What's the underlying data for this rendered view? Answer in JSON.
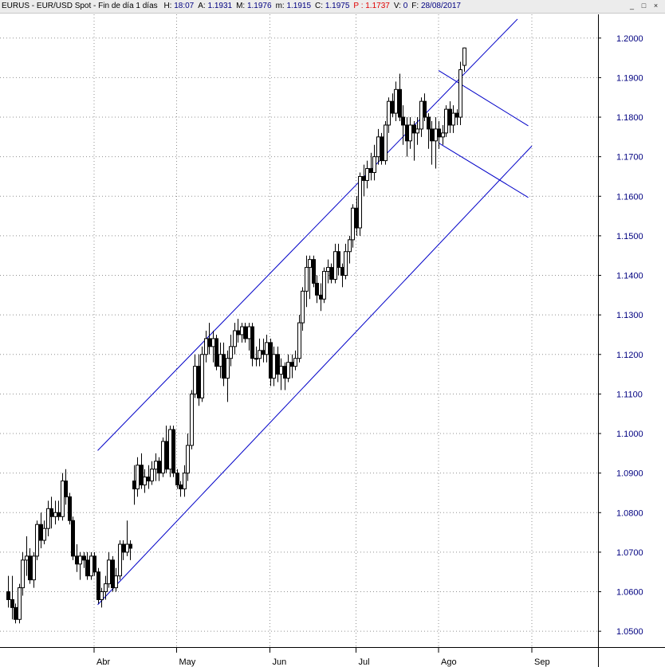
{
  "header": {
    "symbol": "EURUS",
    "description": "EUR/USD Spot",
    "period": "Fin de día 1 días",
    "fields": [
      {
        "label": "H:",
        "value": "18:07",
        "red": false
      },
      {
        "label": "A:",
        "value": "1.1931",
        "red": false
      },
      {
        "label": "M:",
        "value": "1.1976",
        "red": false
      },
      {
        "label": "m:",
        "value": "1.1915",
        "red": false
      },
      {
        "label": "C:",
        "value": "1.1975",
        "red": false
      },
      {
        "label": "P :",
        "value": "1.1737",
        "red": true
      },
      {
        "label": "V:",
        "value": "0",
        "red": false
      },
      {
        "label": "F:",
        "value": "28/08/2017",
        "red": false
      }
    ],
    "buttons": [
      "_",
      "□",
      "×"
    ]
  },
  "chart_data": {
    "type": "candlestick",
    "title": "EURUS - EUR/USD Spot - Fin de día 1 días",
    "ylim": [
      1.046,
      1.206
    ],
    "y_ticks": [
      "1.0500",
      "1.0600",
      "1.0700",
      "1.0800",
      "1.0900",
      "1.1000",
      "1.1100",
      "1.1200",
      "1.1300",
      "1.1400",
      "1.1500",
      "1.1600",
      "1.1700",
      "1.1800",
      "1.1900",
      "1.2000"
    ],
    "x_ticks": [
      {
        "label": "Abr",
        "index": 24
      },
      {
        "label": "May",
        "index": 47
      },
      {
        "label": "Jun",
        "index": 73
      },
      {
        "label": "Jul",
        "index": 97
      },
      {
        "label": "Ago",
        "index": 120
      },
      {
        "label": "Sep",
        "index": 146
      }
    ],
    "grid": true,
    "candles": [
      [
        1.06,
        1.064,
        1.056,
        1.058
      ],
      [
        1.058,
        1.064,
        1.053,
        1.056
      ],
      [
        1.056,
        1.057,
        1.052,
        1.053
      ],
      [
        1.053,
        1.062,
        1.052,
        1.061
      ],
      [
        1.061,
        1.07,
        1.059,
        1.068
      ],
      [
        1.068,
        1.074,
        1.064,
        1.069
      ],
      [
        1.069,
        1.071,
        1.062,
        1.063
      ],
      [
        1.063,
        1.07,
        1.061,
        1.069
      ],
      [
        1.069,
        1.078,
        1.068,
        1.077
      ],
      [
        1.077,
        1.08,
        1.071,
        1.073
      ],
      [
        1.073,
        1.078,
        1.072,
        1.076
      ],
      [
        1.076,
        1.083,
        1.074,
        1.081
      ],
      [
        1.081,
        1.084,
        1.076,
        1.079
      ],
      [
        1.079,
        1.083,
        1.077,
        1.08
      ],
      [
        1.08,
        1.083,
        1.078,
        1.079
      ],
      [
        1.079,
        1.09,
        1.078,
        1.088
      ],
      [
        1.088,
        1.091,
        1.082,
        1.084
      ],
      [
        1.084,
        1.085,
        1.077,
        1.078
      ],
      [
        1.078,
        1.079,
        1.068,
        1.069
      ],
      [
        1.069,
        1.072,
        1.065,
        1.067
      ],
      [
        1.067,
        1.07,
        1.063,
        1.069
      ],
      [
        1.069,
        1.07,
        1.066,
        1.068
      ],
      [
        1.068,
        1.07,
        1.063,
        1.064
      ],
      [
        1.064,
        1.07,
        1.063,
        1.069
      ],
      [
        1.069,
        1.07,
        1.064,
        1.065
      ],
      [
        1.065,
        1.066,
        1.057,
        1.058
      ],
      [
        1.058,
        1.061,
        1.056,
        1.06
      ],
      [
        1.06,
        1.064,
        1.058,
        1.062
      ],
      [
        1.062,
        1.07,
        1.061,
        1.068
      ],
      [
        1.068,
        1.069,
        1.06,
        1.061
      ],
      [
        1.061,
        1.066,
        1.06,
        1.064
      ],
      [
        1.064,
        1.073,
        1.063,
        1.072
      ],
      [
        1.072,
        1.073,
        1.068,
        1.07
      ],
      [
        1.07,
        1.078,
        1.069,
        1.072
      ],
      [
        1.072,
        1.073,
        1.068,
        1.071
      ],
      [
        1.088,
        1.092,
        1.082,
        1.086
      ],
      [
        1.086,
        1.094,
        1.084,
        1.092
      ],
      [
        1.092,
        1.095,
        1.086,
        1.087
      ],
      [
        1.087,
        1.091,
        1.085,
        1.089
      ],
      [
        1.089,
        1.092,
        1.086,
        1.088
      ],
      [
        1.088,
        1.093,
        1.087,
        1.091
      ],
      [
        1.091,
        1.095,
        1.088,
        1.093
      ],
      [
        1.093,
        1.094,
        1.088,
        1.09
      ],
      [
        1.09,
        1.099,
        1.089,
        1.098
      ],
      [
        1.098,
        1.102,
        1.09,
        1.091
      ],
      [
        1.091,
        1.102,
        1.089,
        1.101
      ],
      [
        1.101,
        1.102,
        1.089,
        1.09
      ],
      [
        1.09,
        1.091,
        1.086,
        1.087
      ],
      [
        1.087,
        1.088,
        1.084,
        1.086
      ],
      [
        1.086,
        1.092,
        1.084,
        1.09
      ],
      [
        1.09,
        1.1,
        1.088,
        1.097
      ],
      [
        1.097,
        1.111,
        1.096,
        1.11
      ],
      [
        1.11,
        1.12,
        1.109,
        1.117
      ],
      [
        1.117,
        1.12,
        1.107,
        1.109
      ],
      [
        1.109,
        1.122,
        1.108,
        1.12
      ],
      [
        1.12,
        1.126,
        1.118,
        1.124
      ],
      [
        1.124,
        1.128,
        1.12,
        1.122
      ],
      [
        1.122,
        1.126,
        1.118,
        1.124
      ],
      [
        1.124,
        1.125,
        1.116,
        1.117
      ],
      [
        1.117,
        1.123,
        1.114,
        1.12
      ],
      [
        1.12,
        1.123,
        1.112,
        1.114
      ],
      [
        1.114,
        1.121,
        1.108,
        1.119
      ],
      [
        1.119,
        1.125,
        1.117,
        1.122
      ],
      [
        1.122,
        1.128,
        1.12,
        1.126
      ],
      [
        1.126,
        1.129,
        1.123,
        1.125
      ],
      [
        1.125,
        1.128,
        1.123,
        1.127
      ],
      [
        1.127,
        1.128,
        1.123,
        1.124
      ],
      [
        1.124,
        1.128,
        1.121,
        1.127
      ],
      [
        1.127,
        1.128,
        1.117,
        1.119
      ],
      [
        1.119,
        1.122,
        1.117,
        1.119
      ],
      [
        1.119,
        1.124,
        1.117,
        1.121
      ],
      [
        1.121,
        1.124,
        1.118,
        1.12
      ],
      [
        1.12,
        1.125,
        1.118,
        1.123
      ],
      [
        1.123,
        1.124,
        1.112,
        1.114
      ],
      [
        1.114,
        1.122,
        1.112,
        1.12
      ],
      [
        1.12,
        1.122,
        1.113,
        1.115
      ],
      [
        1.115,
        1.119,
        1.111,
        1.117
      ],
      [
        1.117,
        1.118,
        1.111,
        1.114
      ],
      [
        1.114,
        1.12,
        1.113,
        1.118
      ],
      [
        1.118,
        1.12,
        1.114,
        1.117
      ],
      [
        1.117,
        1.121,
        1.116,
        1.119
      ],
      [
        1.119,
        1.13,
        1.118,
        1.128
      ],
      [
        1.128,
        1.137,
        1.126,
        1.136
      ],
      [
        1.136,
        1.145,
        1.132,
        1.142
      ],
      [
        1.142,
        1.145,
        1.134,
        1.144
      ],
      [
        1.144,
        1.145,
        1.137,
        1.138
      ],
      [
        1.138,
        1.14,
        1.133,
        1.135
      ],
      [
        1.135,
        1.138,
        1.131,
        1.134
      ],
      [
        1.134,
        1.142,
        1.133,
        1.141
      ],
      [
        1.141,
        1.144,
        1.138,
        1.142
      ],
      [
        1.142,
        1.143,
        1.138,
        1.139
      ],
      [
        1.139,
        1.148,
        1.138,
        1.146
      ],
      [
        1.146,
        1.148,
        1.14,
        1.142
      ],
      [
        1.142,
        1.143,
        1.137,
        1.14
      ],
      [
        1.14,
        1.148,
        1.139,
        1.146
      ],
      [
        1.146,
        1.15,
        1.143,
        1.149
      ],
      [
        1.149,
        1.158,
        1.147,
        1.157
      ],
      [
        1.157,
        1.16,
        1.15,
        1.152
      ],
      [
        1.152,
        1.166,
        1.15,
        1.165
      ],
      [
        1.165,
        1.168,
        1.16,
        1.164
      ],
      [
        1.164,
        1.169,
        1.162,
        1.167
      ],
      [
        1.167,
        1.171,
        1.164,
        1.166
      ],
      [
        1.166,
        1.173,
        1.164,
        1.17
      ],
      [
        1.17,
        1.177,
        1.168,
        1.175
      ],
      [
        1.175,
        1.176,
        1.168,
        1.169
      ],
      [
        1.169,
        1.179,
        1.168,
        1.178
      ],
      [
        1.178,
        1.185,
        1.176,
        1.184
      ],
      [
        1.184,
        1.186,
        1.18,
        1.181
      ],
      [
        1.181,
        1.189,
        1.179,
        1.187
      ],
      [
        1.187,
        1.191,
        1.179,
        1.18
      ],
      [
        1.18,
        1.183,
        1.173,
        1.178
      ],
      [
        1.178,
        1.18,
        1.17,
        1.174
      ],
      [
        1.174,
        1.18,
        1.172,
        1.178
      ],
      [
        1.178,
        1.179,
        1.169,
        1.176
      ],
      [
        1.176,
        1.18,
        1.173,
        1.177
      ],
      [
        1.177,
        1.185,
        1.175,
        1.184
      ],
      [
        1.184,
        1.186,
        1.179,
        1.18
      ],
      [
        1.18,
        1.181,
        1.172,
        1.177
      ],
      [
        1.177,
        1.179,
        1.168,
        1.174
      ],
      [
        1.174,
        1.18,
        1.167,
        1.177
      ],
      [
        1.177,
        1.179,
        1.172,
        1.175
      ],
      [
        1.175,
        1.178,
        1.173,
        1.176
      ],
      [
        1.176,
        1.183,
        1.175,
        1.182
      ],
      [
        1.182,
        1.184,
        1.176,
        1.178
      ],
      [
        1.178,
        1.183,
        1.176,
        1.181
      ],
      [
        1.181,
        1.182,
        1.178,
        1.18
      ],
      [
        1.18,
        1.194,
        1.178,
        1.192
      ],
      [
        1.1931,
        1.1976,
        1.1915,
        1.1975
      ]
    ],
    "trendlines": [
      {
        "from": [
          25,
          1.0957
        ],
        "to": [
          142,
          1.2048
        ]
      },
      {
        "from": [
          25,
          1.0567
        ],
        "to": [
          146,
          1.1727
        ]
      },
      {
        "from": [
          120,
          1.1918
        ],
        "to": [
          145,
          1.1778
        ]
      },
      {
        "from": [
          120,
          1.1735
        ],
        "to": [
          145,
          1.1597
        ]
      }
    ]
  }
}
